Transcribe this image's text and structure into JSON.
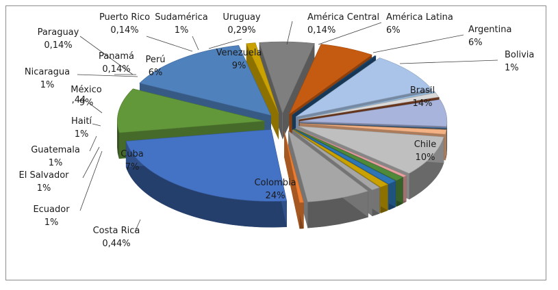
{
  "chart_data": {
    "type": "pie",
    "title": "",
    "slices": [
      {
        "name": "Colombia",
        "value": 24,
        "label": "24%",
        "color": "#4472C4",
        "pos": "inside"
      },
      {
        "name": "Chile",
        "value": 10,
        "label": "10%",
        "color": "#62973A",
        "pos": "inside"
      },
      {
        "name": "Brasil",
        "value": 14,
        "label": "14%",
        "color": "#4F81BD",
        "pos": "inside"
      },
      {
        "name": "Bolivia",
        "value": 1,
        "label": "1%",
        "color": "#C9A100",
        "pos": "outside"
      },
      {
        "name": "Argentina",
        "value": 6,
        "label": "6%",
        "color": "#7F7F7F",
        "pos": "outside"
      },
      {
        "name": "América Latina",
        "value": 6,
        "label": "6%",
        "color": "#C55A11",
        "pos": "outside"
      },
      {
        "name": "América Central",
        "value": 0.14,
        "label": "0,14%",
        "color": "#1F4E79",
        "pos": "outside"
      },
      {
        "name": "Venezuela",
        "value": 9,
        "label": "9%",
        "color": "#A9C4E8",
        "pos": "inside"
      },
      {
        "name": "Uruguay",
        "value": 0.29,
        "label": "0,29%",
        "color": "#9DC3E6",
        "pos": "outside"
      },
      {
        "name": "Sudamérica",
        "value": 1,
        "label": "1%",
        "color": "#D9D9D9",
        "pos": "outside"
      },
      {
        "name": "Puerto Rico",
        "value": 0.14,
        "label": "0,14%",
        "color": "#8B4A2B",
        "pos": "outside"
      },
      {
        "name": "Perú",
        "value": 6,
        "label": "6%",
        "color": "#A9B4DC",
        "pos": "inside"
      },
      {
        "name": "Panamá",
        "value": 0.14,
        "label": "0,14%",
        "color": "#2E75B6",
        "pos": "outside"
      },
      {
        "name": "Paraguay",
        "value": 0.14,
        "label": "0,14%",
        "color": "#5A5A5A",
        "pos": "outside"
      },
      {
        "name": "Nicaragua",
        "value": 1,
        "label": "1%",
        "color": "#F4B183",
        "pos": "outside"
      },
      {
        "name": "México",
        "value": 9,
        "label": "9%",
        "color": "#BFBFBF",
        "pos": "inside"
      },
      {
        "name": "",
        "value": 0.44,
        "label": ",44",
        "color": "#E8A0A0",
        "pos": "outside"
      },
      {
        "name": "Haití",
        "value": 1,
        "label": "1%",
        "color": "#4F8A3A",
        "pos": "outside"
      },
      {
        "name": "Guatemala",
        "value": 1,
        "label": "1%",
        "color": "#2E75B6",
        "pos": "outside"
      },
      {
        "name": "El Salvador",
        "value": 1,
        "label": "1%",
        "color": "#C9A100",
        "pos": "outside"
      },
      {
        "name": "Ecuador",
        "value": 1,
        "label": "1%",
        "color": "#A6A6A6",
        "pos": "outside"
      },
      {
        "name": "Cuba",
        "value": 7,
        "label": "7%",
        "color": "#A6A6A6",
        "pos": "inside"
      },
      {
        "name": "Costa Rica",
        "value": 0.44,
        "label": "0,44%",
        "color": "#ED7D31",
        "pos": "outside"
      }
    ]
  }
}
